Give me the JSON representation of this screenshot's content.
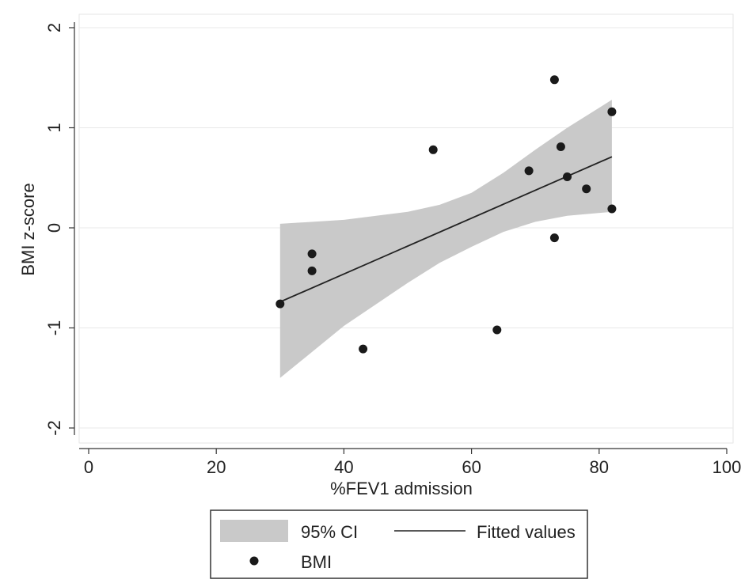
{
  "chart_data": {
    "type": "scatter",
    "title": "",
    "xlabel": "%FEV1 admission",
    "ylabel": "BMI z-score",
    "xlim": [
      0,
      100
    ],
    "ylim": [
      -2,
      2
    ],
    "x_ticks": [
      0,
      20,
      40,
      60,
      80,
      100
    ],
    "y_ticks": [
      -2,
      -1,
      0,
      1,
      2
    ],
    "grid": true,
    "legend_position": "bottom",
    "series": [
      {
        "name": "BMI",
        "kind": "scatter",
        "points": [
          {
            "x": 30,
            "y": -0.76
          },
          {
            "x": 35,
            "y": -0.26
          },
          {
            "x": 35,
            "y": -0.43
          },
          {
            "x": 43,
            "y": -1.21
          },
          {
            "x": 54,
            "y": 0.78
          },
          {
            "x": 64,
            "y": -1.02
          },
          {
            "x": 69,
            "y": 0.57
          },
          {
            "x": 73,
            "y": 1.48
          },
          {
            "x": 73,
            "y": -0.1
          },
          {
            "x": 74,
            "y": 0.81
          },
          {
            "x": 75,
            "y": 0.51
          },
          {
            "x": 78,
            "y": 0.39
          },
          {
            "x": 82,
            "y": 1.16
          },
          {
            "x": 82,
            "y": 0.19
          }
        ]
      },
      {
        "name": "Fitted values",
        "kind": "line",
        "points": [
          {
            "x": 30,
            "y": -0.74
          },
          {
            "x": 82,
            "y": 0.71
          }
        ]
      },
      {
        "name": "95% CI",
        "kind": "band",
        "x": [
          30,
          40,
          50,
          55,
          60,
          65,
          70,
          75,
          82
        ],
        "upper": [
          0.04,
          0.08,
          0.16,
          0.23,
          0.35,
          0.55,
          0.78,
          1.0,
          1.28
        ],
        "lower": [
          -1.5,
          -0.98,
          -0.55,
          -0.35,
          -0.19,
          -0.04,
          0.06,
          0.12,
          0.16
        ]
      }
    ]
  },
  "colors": {
    "background": "#ffffff",
    "plot_border": "#e6e6e6",
    "gridline": "#e8e8e8",
    "ci_fill": "#c9c9c9",
    "fitted_line": "#222222",
    "marker": "#1a1a1a",
    "axis": "#333333"
  }
}
